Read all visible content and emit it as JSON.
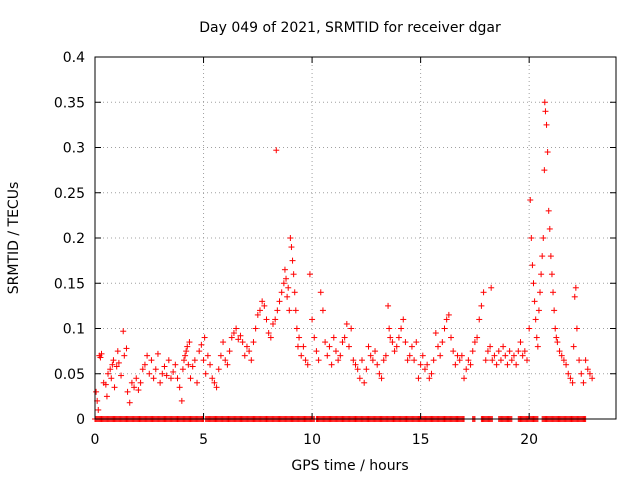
{
  "chart_data": {
    "type": "scatter",
    "title": "Day 049 of 2021, SRMTID for receiver dgar",
    "xlabel": "GPS time / hours",
    "ylabel": "SRMTID / TECUs",
    "xlim": [
      0,
      24
    ],
    "ylim": [
      0,
      0.4
    ],
    "xticks": [
      0,
      5,
      10,
      15,
      20
    ],
    "yticks": [
      0,
      0.05,
      0.1,
      0.15,
      0.2,
      0.25,
      0.3,
      0.35,
      0.4
    ],
    "grid": true,
    "marker": "+",
    "color": "#ff0000",
    "series": [
      {
        "name": "SRMTID",
        "zero_hours": [
          [
            0.0,
            5.0
          ],
          [
            5.1,
            10.1
          ],
          [
            10.2,
            17.0
          ],
          [
            17.4,
            17.5
          ],
          [
            17.8,
            18.3
          ],
          [
            18.6,
            19.2
          ],
          [
            19.5,
            20.4
          ],
          [
            20.6,
            22.6
          ]
        ],
        "points": [
          [
            0.05,
            0.03
          ],
          [
            0.1,
            0.02
          ],
          [
            0.15,
            0.01
          ],
          [
            0.2,
            0.07
          ],
          [
            0.25,
            0.068
          ],
          [
            0.3,
            0.072
          ],
          [
            0.4,
            0.04
          ],
          [
            0.5,
            0.038
          ],
          [
            0.55,
            0.025
          ],
          [
            0.6,
            0.05
          ],
          [
            0.7,
            0.055
          ],
          [
            0.75,
            0.045
          ],
          [
            0.8,
            0.06
          ],
          [
            0.85,
            0.065
          ],
          [
            0.9,
            0.035
          ],
          [
            1.0,
            0.058
          ],
          [
            1.05,
            0.075
          ],
          [
            1.1,
            0.062
          ],
          [
            1.2,
            0.048
          ],
          [
            1.3,
            0.097
          ],
          [
            1.35,
            0.07
          ],
          [
            1.45,
            0.078
          ],
          [
            1.5,
            0.03
          ],
          [
            1.6,
            0.018
          ],
          [
            1.7,
            0.04
          ],
          [
            1.8,
            0.035
          ],
          [
            1.9,
            0.045
          ],
          [
            2.0,
            0.032
          ],
          [
            2.1,
            0.04
          ],
          [
            2.2,
            0.055
          ],
          [
            2.3,
            0.06
          ],
          [
            2.4,
            0.07
          ],
          [
            2.5,
            0.05
          ],
          [
            2.6,
            0.065
          ],
          [
            2.7,
            0.045
          ],
          [
            2.8,
            0.055
          ],
          [
            2.9,
            0.072
          ],
          [
            3.0,
            0.04
          ],
          [
            3.1,
            0.05
          ],
          [
            3.2,
            0.058
          ],
          [
            3.3,
            0.048
          ],
          [
            3.4,
            0.065
          ],
          [
            3.5,
            0.045
          ],
          [
            3.6,
            0.052
          ],
          [
            3.7,
            0.06
          ],
          [
            3.8,
            0.045
          ],
          [
            3.9,
            0.035
          ],
          [
            4.0,
            0.02
          ],
          [
            4.05,
            0.055
          ],
          [
            4.1,
            0.065
          ],
          [
            4.15,
            0.07
          ],
          [
            4.2,
            0.075
          ],
          [
            4.25,
            0.08
          ],
          [
            4.3,
            0.06
          ],
          [
            4.35,
            0.085
          ],
          [
            4.4,
            0.045
          ],
          [
            4.5,
            0.058
          ],
          [
            4.6,
            0.065
          ],
          [
            4.7,
            0.04
          ],
          [
            4.8,
            0.075
          ],
          [
            4.9,
            0.082
          ],
          [
            5.0,
            0.065
          ],
          [
            5.05,
            0.09
          ],
          [
            5.1,
            0.05
          ],
          [
            5.2,
            0.07
          ],
          [
            5.3,
            0.06
          ],
          [
            5.4,
            0.045
          ],
          [
            5.5,
            0.04
          ],
          [
            5.6,
            0.035
          ],
          [
            5.7,
            0.055
          ],
          [
            5.8,
            0.07
          ],
          [
            5.9,
            0.085
          ],
          [
            6.0,
            0.065
          ],
          [
            6.1,
            0.06
          ],
          [
            6.2,
            0.075
          ],
          [
            6.3,
            0.09
          ],
          [
            6.4,
            0.095
          ],
          [
            6.5,
            0.1
          ],
          [
            6.6,
            0.088
          ],
          [
            6.7,
            0.092
          ],
          [
            6.8,
            0.085
          ],
          [
            6.9,
            0.07
          ],
          [
            7.0,
            0.08
          ],
          [
            7.1,
            0.075
          ],
          [
            7.2,
            0.065
          ],
          [
            7.3,
            0.085
          ],
          [
            7.4,
            0.1
          ],
          [
            7.5,
            0.115
          ],
          [
            7.6,
            0.12
          ],
          [
            7.7,
            0.13
          ],
          [
            7.8,
            0.125
          ],
          [
            7.9,
            0.11
          ],
          [
            8.0,
            0.095
          ],
          [
            8.1,
            0.09
          ],
          [
            8.2,
            0.105
          ],
          [
            8.3,
            0.11
          ],
          [
            8.35,
            0.297
          ],
          [
            8.4,
            0.12
          ],
          [
            8.5,
            0.13
          ],
          [
            8.6,
            0.14
          ],
          [
            8.7,
            0.15
          ],
          [
            8.75,
            0.165
          ],
          [
            8.8,
            0.155
          ],
          [
            8.85,
            0.135
          ],
          [
            8.9,
            0.145
          ],
          [
            8.95,
            0.12
          ],
          [
            9.0,
            0.2
          ],
          [
            9.05,
            0.19
          ],
          [
            9.1,
            0.175
          ],
          [
            9.15,
            0.16
          ],
          [
            9.2,
            0.14
          ],
          [
            9.25,
            0.12
          ],
          [
            9.3,
            0.1
          ],
          [
            9.35,
            0.08
          ],
          [
            9.4,
            0.09
          ],
          [
            9.5,
            0.07
          ],
          [
            9.6,
            0.08
          ],
          [
            9.7,
            0.065
          ],
          [
            9.8,
            0.06
          ],
          [
            9.9,
            0.16
          ],
          [
            10.0,
            0.11
          ],
          [
            10.1,
            0.09
          ],
          [
            10.2,
            0.075
          ],
          [
            10.3,
            0.065
          ],
          [
            10.4,
            0.14
          ],
          [
            10.5,
            0.12
          ],
          [
            10.6,
            0.085
          ],
          [
            10.7,
            0.07
          ],
          [
            10.8,
            0.08
          ],
          [
            10.9,
            0.06
          ],
          [
            11.0,
            0.09
          ],
          [
            11.1,
            0.075
          ],
          [
            11.2,
            0.065
          ],
          [
            11.3,
            0.07
          ],
          [
            11.4,
            0.085
          ],
          [
            11.5,
            0.09
          ],
          [
            11.6,
            0.105
          ],
          [
            11.7,
            0.08
          ],
          [
            11.8,
            0.1
          ],
          [
            11.9,
            0.065
          ],
          [
            12.0,
            0.06
          ],
          [
            12.1,
            0.055
          ],
          [
            12.2,
            0.045
          ],
          [
            12.3,
            0.065
          ],
          [
            12.4,
            0.04
          ],
          [
            12.5,
            0.055
          ],
          [
            12.6,
            0.08
          ],
          [
            12.7,
            0.07
          ],
          [
            12.8,
            0.065
          ],
          [
            12.9,
            0.075
          ],
          [
            13.0,
            0.06
          ],
          [
            13.1,
            0.05
          ],
          [
            13.2,
            0.045
          ],
          [
            13.3,
            0.065
          ],
          [
            13.4,
            0.07
          ],
          [
            13.5,
            0.125
          ],
          [
            13.55,
            0.1
          ],
          [
            13.6,
            0.09
          ],
          [
            13.7,
            0.085
          ],
          [
            13.8,
            0.075
          ],
          [
            13.9,
            0.08
          ],
          [
            14.0,
            0.09
          ],
          [
            14.1,
            0.1
          ],
          [
            14.2,
            0.11
          ],
          [
            14.3,
            0.085
          ],
          [
            14.4,
            0.065
          ],
          [
            14.5,
            0.07
          ],
          [
            14.6,
            0.08
          ],
          [
            14.7,
            0.065
          ],
          [
            14.8,
            0.085
          ],
          [
            14.9,
            0.045
          ],
          [
            15.0,
            0.06
          ],
          [
            15.1,
            0.07
          ],
          [
            15.2,
            0.055
          ],
          [
            15.3,
            0.06
          ],
          [
            15.4,
            0.045
          ],
          [
            15.5,
            0.05
          ],
          [
            15.6,
            0.065
          ],
          [
            15.7,
            0.095
          ],
          [
            15.8,
            0.08
          ],
          [
            15.9,
            0.07
          ],
          [
            16.0,
            0.085
          ],
          [
            16.1,
            0.1
          ],
          [
            16.2,
            0.11
          ],
          [
            16.3,
            0.115
          ],
          [
            16.4,
            0.09
          ],
          [
            16.5,
            0.075
          ],
          [
            16.6,
            0.06
          ],
          [
            16.7,
            0.07
          ],
          [
            16.8,
            0.065
          ],
          [
            16.9,
            0.07
          ],
          [
            17.0,
            0.045
          ],
          [
            17.1,
            0.055
          ],
          [
            17.2,
            0.065
          ],
          [
            17.3,
            0.06
          ],
          [
            17.4,
            0.075
          ],
          [
            17.5,
            0.085
          ],
          [
            17.6,
            0.09
          ],
          [
            17.7,
            0.11
          ],
          [
            17.8,
            0.125
          ],
          [
            17.9,
            0.14
          ],
          [
            18.0,
            0.065
          ],
          [
            18.1,
            0.075
          ],
          [
            18.2,
            0.08
          ],
          [
            18.25,
            0.145
          ],
          [
            18.3,
            0.065
          ],
          [
            18.4,
            0.07
          ],
          [
            18.5,
            0.06
          ],
          [
            18.6,
            0.075
          ],
          [
            18.7,
            0.065
          ],
          [
            18.8,
            0.08
          ],
          [
            18.9,
            0.07
          ],
          [
            19.0,
            0.06
          ],
          [
            19.1,
            0.075
          ],
          [
            19.2,
            0.065
          ],
          [
            19.3,
            0.07
          ],
          [
            19.4,
            0.06
          ],
          [
            19.5,
            0.075
          ],
          [
            19.6,
            0.085
          ],
          [
            19.7,
            0.07
          ],
          [
            19.8,
            0.075
          ],
          [
            19.9,
            0.065
          ],
          [
            20.0,
            0.1
          ],
          [
            20.05,
            0.242
          ],
          [
            20.1,
            0.2
          ],
          [
            20.15,
            0.17
          ],
          [
            20.2,
            0.15
          ],
          [
            20.25,
            0.13
          ],
          [
            20.3,
            0.11
          ],
          [
            20.35,
            0.09
          ],
          [
            20.4,
            0.08
          ],
          [
            20.45,
            0.12
          ],
          [
            20.5,
            0.14
          ],
          [
            20.55,
            0.16
          ],
          [
            20.6,
            0.18
          ],
          [
            20.65,
            0.2
          ],
          [
            20.7,
            0.275
          ],
          [
            20.72,
            0.35
          ],
          [
            20.75,
            0.34
          ],
          [
            20.8,
            0.325
          ],
          [
            20.85,
            0.295
          ],
          [
            20.9,
            0.23
          ],
          [
            20.95,
            0.21
          ],
          [
            21.0,
            0.18
          ],
          [
            21.05,
            0.16
          ],
          [
            21.1,
            0.14
          ],
          [
            21.15,
            0.12
          ],
          [
            21.2,
            0.1
          ],
          [
            21.25,
            0.09
          ],
          [
            21.3,
            0.085
          ],
          [
            21.4,
            0.075
          ],
          [
            21.5,
            0.07
          ],
          [
            21.6,
            0.065
          ],
          [
            21.7,
            0.06
          ],
          [
            21.8,
            0.05
          ],
          [
            21.9,
            0.045
          ],
          [
            22.0,
            0.04
          ],
          [
            22.05,
            0.08
          ],
          [
            22.1,
            0.135
          ],
          [
            22.15,
            0.145
          ],
          [
            22.2,
            0.1
          ],
          [
            22.3,
            0.065
          ],
          [
            22.4,
            0.05
          ],
          [
            22.5,
            0.04
          ],
          [
            22.6,
            0.065
          ],
          [
            22.7,
            0.055
          ],
          [
            22.8,
            0.05
          ],
          [
            22.9,
            0.045
          ]
        ]
      }
    ]
  }
}
